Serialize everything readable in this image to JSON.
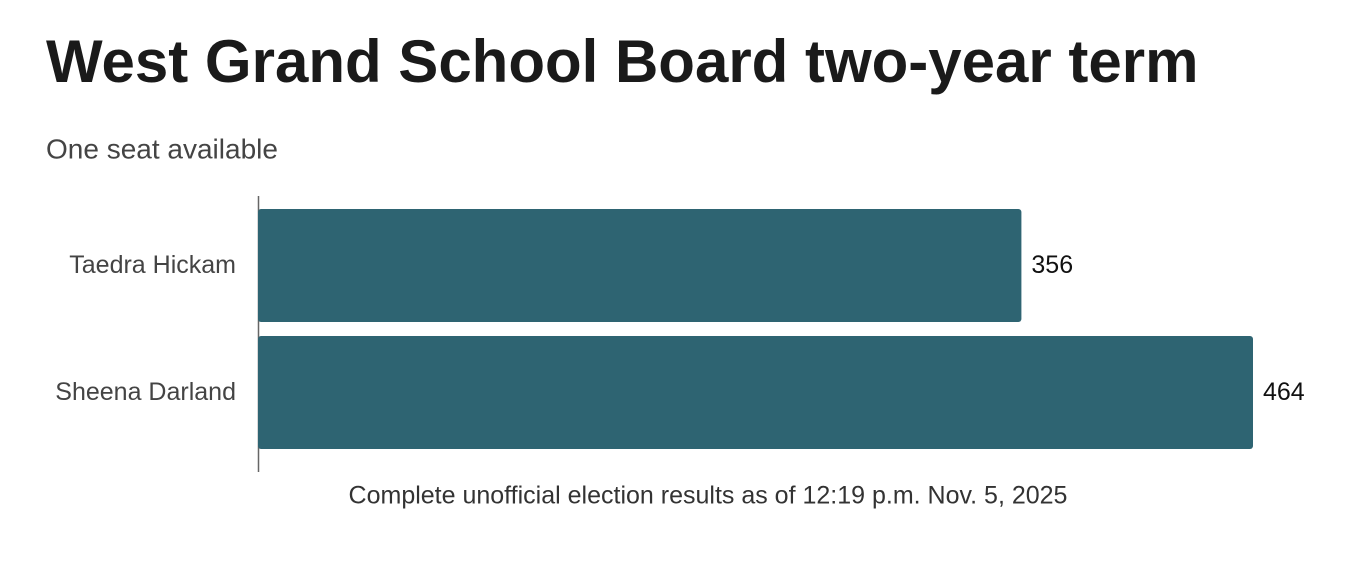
{
  "chart_data": {
    "type": "bar",
    "orientation": "horizontal",
    "title": "West Grand School Board two-year term",
    "subtitle": "One seat available",
    "categories": [
      "Taedra Hickam",
      "Sheena Darland"
    ],
    "values": [
      356,
      464
    ],
    "color": "#2e6472",
    "note": "Complete unofficial election results as of 12:19 p.m. Nov. 5, 2025"
  }
}
